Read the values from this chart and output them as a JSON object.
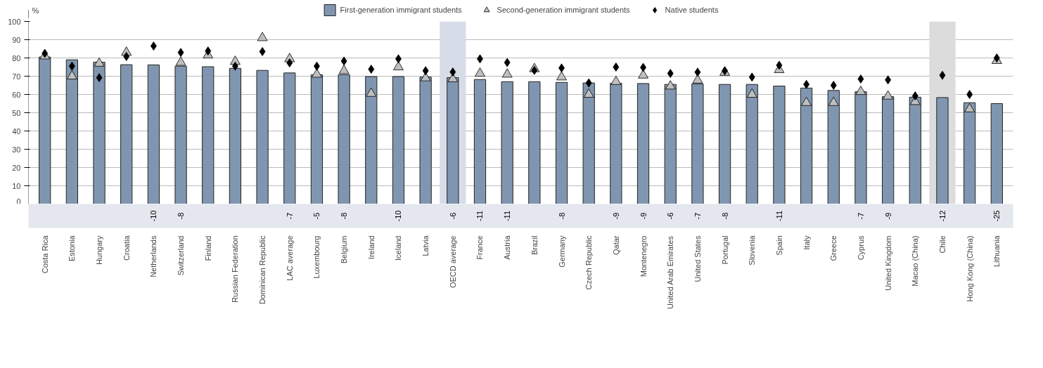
{
  "chart_data": [
    {
      "type": "bar",
      "ylabel": "%",
      "categories": [
        "Costa Rica",
        "Estonia",
        "Hungary",
        "Croatia",
        "Netherlands",
        "Switzerland",
        "Finland",
        "Russian Federation",
        "Dominican Republic",
        "LAC average",
        "Luxembourg",
        "Belgium",
        "Ireland",
        "Iceland",
        "Latvia",
        "OECD average",
        "France",
        "Austria",
        "Brazil",
        "Germany",
        "Czech Republic",
        "Qatar",
        "Montenegro",
        "United Arab Emirates",
        "United States",
        "Portugal",
        "Slovenia",
        "Spain",
        "Italy",
        "Greece",
        "Cyprus",
        "United Kingdom",
        "Macao (China)",
        "Chile",
        "Hong Kong (China)",
        "Lithuania"
      ],
      "series": [
        {
          "name": "First-generation immigrant students",
          "color": "#8096b0",
          "values": [
            80.5,
            79,
            77.7,
            76.3,
            76.2,
            75.5,
            75.2,
            74.3,
            73.2,
            71.8,
            70.8,
            70.8,
            69.8,
            69.8,
            69.5,
            69.2,
            68.2,
            67,
            67,
            66.6,
            66.3,
            66.1,
            66,
            65.5,
            65.8,
            65.5,
            65.5,
            64.6,
            63.5,
            62.2,
            61.5,
            58.8,
            58.5,
            58.3,
            55.5,
            55
          ]
        },
        {
          "name": "Second-generation immigrant students",
          "type": "scatter",
          "marker": "triangle",
          "color": "#bfbfbf",
          "values": [
            81,
            70,
            77,
            83,
            null,
            77.5,
            81.5,
            78,
            91,
            79.5,
            71,
            73,
            60.5,
            75,
            69,
            68.5,
            71.5,
            71,
            74,
            69.5,
            60,
            67,
            70.5,
            64.5,
            67.8,
            72,
            60,
            73.5,
            55.5,
            55.5,
            61.5,
            59,
            56,
            null,
            52,
            78.5
          ]
        },
        {
          "name": "Native students",
          "type": "scatter",
          "marker": "diamond",
          "color": "#000000",
          "values": [
            82.5,
            75.5,
            69.2,
            80.8,
            86.5,
            83,
            83.8,
            75.5,
            83.5,
            77.3,
            75.5,
            78.3,
            73.8,
            79.5,
            73,
            72.3,
            79.5,
            77.5,
            73.2,
            74.5,
            66.3,
            75,
            74.8,
            71.5,
            72.2,
            73,
            69.5,
            76,
            65.5,
            65,
            68.5,
            68,
            59.2,
            70.5,
            60,
            80
          ]
        }
      ],
      "ylim": [
        0,
        100
      ],
      "yticks": [
        0,
        10,
        20,
        30,
        40,
        50,
        60,
        70,
        80,
        90,
        100
      ],
      "grid": "y",
      "legend": "top",
      "bands": [
        {
          "axis": "x",
          "from": "OECD average",
          "to": "OECD average",
          "color": "#d6dde8"
        },
        {
          "axis": "x",
          "from": "Chile",
          "to": "Chile",
          "color": "#dcdcdc"
        }
      ]
    },
    {
      "type": "other",
      "categories": [
        null,
        null,
        null,
        null,
        null,
        null,
        null,
        null,
        null,
        null,
        null,
        null,
        null,
        null,
        null,
        null,
        null,
        null,
        null,
        null,
        null,
        null,
        null,
        null,
        null,
        null,
        null,
        null,
        null,
        null,
        null,
        null,
        null,
        null,
        null,
        null
      ],
      "values": [
        null,
        null,
        null,
        null,
        -10,
        -8,
        null,
        null,
        null,
        -7,
        -5,
        -8,
        null,
        -10,
        null,
        -6,
        -11,
        -11,
        null,
        -8,
        null,
        -9,
        -9,
        -6,
        -7,
        -8,
        null,
        -11,
        null,
        null,
        -7,
        -9,
        null,
        -12,
        null,
        -25
      ],
      "data_labels": true
    }
  ]
}
